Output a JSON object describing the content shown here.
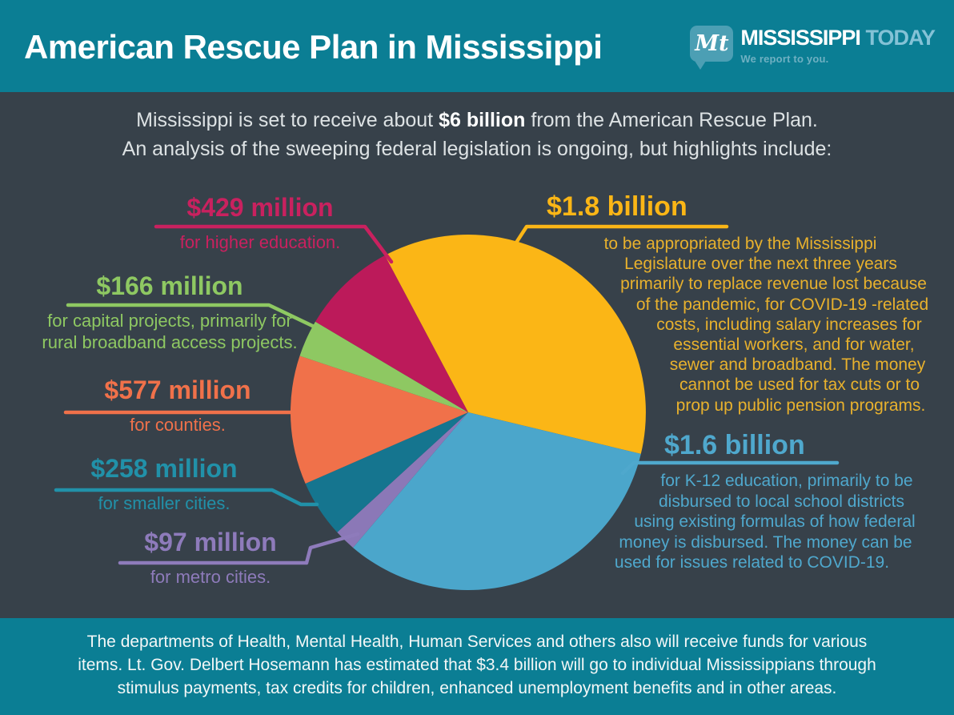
{
  "header": {
    "title": "American Rescue Plan in Mississippi",
    "logo": {
      "mark": "Mt",
      "name_primary": "MISSISSIPPI",
      "name_secondary": "TODAY",
      "tagline": "We report to you."
    }
  },
  "intro": {
    "line1_pre": "Mississippi is set to receive about ",
    "line1_bold": "$6 billion",
    "line1_post": " from the American Rescue Plan.",
    "line2": "An analysis of the sweeping federal legislation is ongoing, but highlights include:"
  },
  "chart_data": {
    "type": "pie",
    "title": "American Rescue Plan in Mississippi",
    "total_label": "$6 billion",
    "unit": "USD millions",
    "direction": "clockwise",
    "start_angle_deg_from_top": -28,
    "slices": [
      {
        "id": "legislature",
        "label": "$1.8 billion",
        "value_millions": 1800,
        "color": "#FBB616",
        "desc_lines": [
          "to be appropriated by the Mississippi",
          "Legislature over the next three years",
          "primarily to replace revenue lost because",
          "of the pandemic, for COVID-19 -related",
          "costs, including salary increases for",
          "essential workers, and for water,",
          "sewer and broadband. The money",
          "cannot be used for tax cuts or to",
          "prop up public pension programs."
        ]
      },
      {
        "id": "k12",
        "label": "$1.6 billion",
        "value_millions": 1600,
        "color": "#4BA6CB",
        "label_color": "#4FA8CD",
        "desc_lines": [
          "for K-12 education, primarily to be",
          "disbursed to local school districts",
          "using existing formulas of how federal",
          "money is disbursed. The money can be",
          "used for issues related to COVID-19."
        ]
      },
      {
        "id": "metro_cities",
        "label": "$97 million",
        "value_millions": 97,
        "color": "#8B78B7",
        "label_color": "#8E7BBB",
        "desc_lines": [
          "for metro cities."
        ]
      },
      {
        "id": "smaller_cities",
        "label": "$258 million",
        "value_millions": 258,
        "color": "#15758F",
        "label_color": "#2191A9",
        "desc_lines": [
          "for smaller cities."
        ]
      },
      {
        "id": "counties",
        "label": "$577 million",
        "value_millions": 577,
        "color": "#F0714A",
        "desc_lines": [
          "for counties."
        ]
      },
      {
        "id": "capital_projects",
        "label": "$166 million",
        "value_millions": 166,
        "color": "#8EC862",
        "desc_lines": [
          "for capital projects, primarily for",
          "rural broadband access projects."
        ]
      },
      {
        "id": "higher_education",
        "label": "$429 million",
        "value_millions": 429,
        "color": "#BC1A5A",
        "label_color": "#C9215F",
        "desc_lines": [
          "for higher education."
        ]
      }
    ]
  },
  "footer": {
    "lines": [
      "The departments of Health, Mental Health, Human Services and others also will receive funds for various",
      "items. Lt. Gov. Delbert Hosemann has estimated that $3.4 billion will go to individual Mississippians through",
      "stimulus payments, tax credits for children, enhanced unemployment benefits and in other areas."
    ]
  }
}
